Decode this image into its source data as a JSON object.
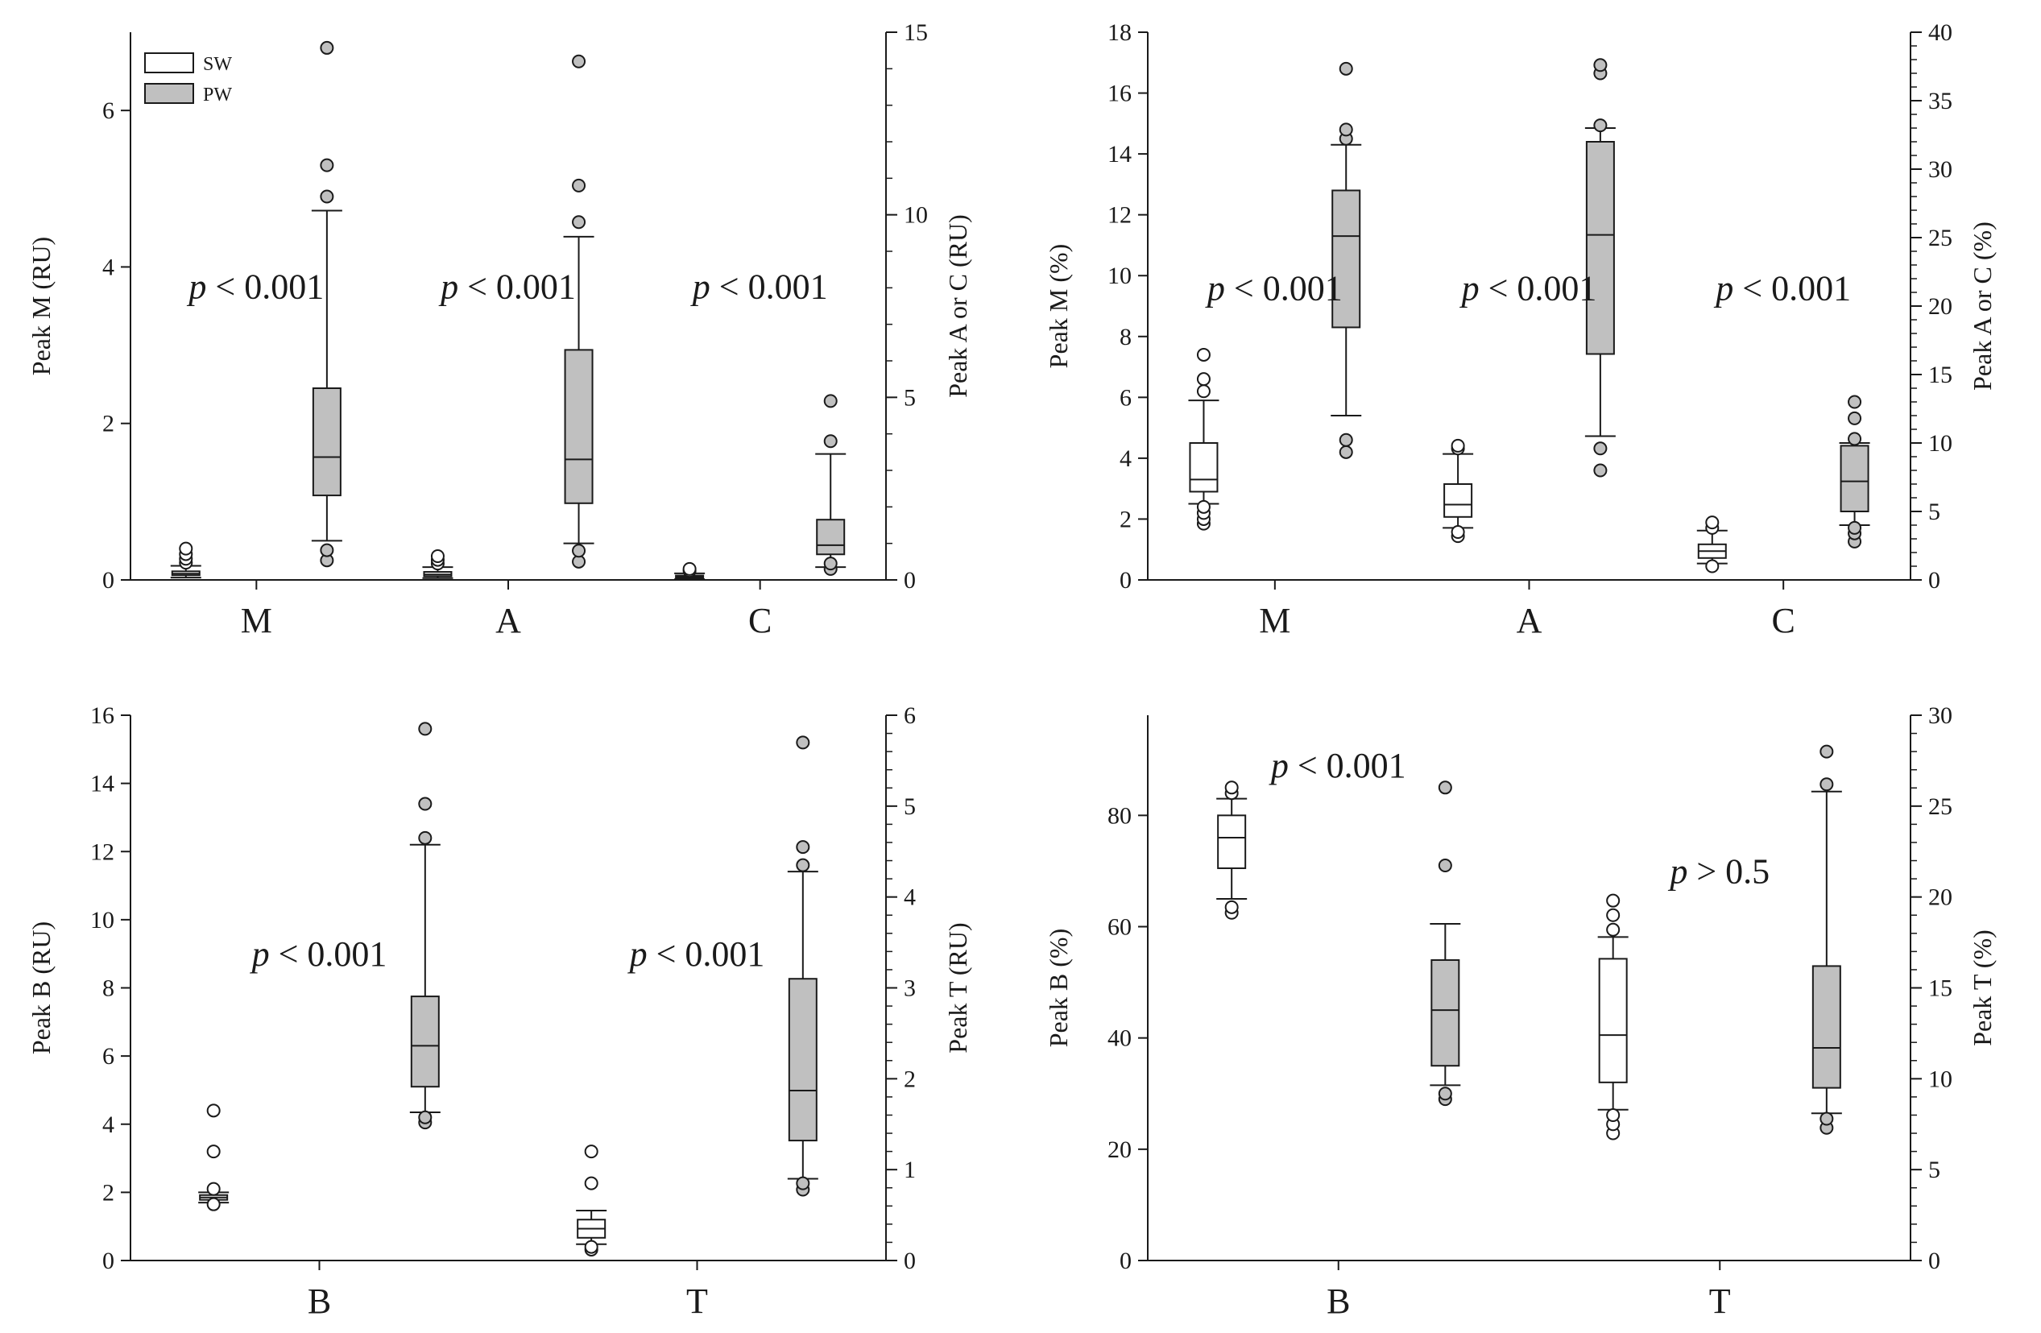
{
  "colors": {
    "sw_fill": "#ffffff",
    "pw_fill": "#c0c0c0",
    "stroke": "#1a1a1a"
  },
  "legend": [
    {
      "label": "SW",
      "fill": "#ffffff"
    },
    {
      "label": "PW",
      "fill": "#c0c0c0"
    }
  ],
  "chart_data": [
    {
      "type": "box",
      "panel": "top-left",
      "ylabel_left": "Peak M (RU)",
      "ylabel_right": "Peak A or C (RU)",
      "ylim_left": [
        0,
        7
      ],
      "ylim_right": [
        0,
        15
      ],
      "yticks_left": [
        0,
        2,
        4,
        6
      ],
      "yticks_right": [
        0,
        5,
        10,
        15
      ],
      "minor_right": 1,
      "categories": [
        "M",
        "A",
        "C"
      ],
      "category_axes": [
        "left",
        "right",
        "right"
      ],
      "pvalues": [
        {
          "italic": "p",
          "text": " < 0.001",
          "x": 0.5,
          "y": 3.75
        },
        {
          "italic": "p",
          "text": " < 0.001",
          "x": 1.5,
          "y": 3.75
        },
        {
          "italic": "p",
          "text": " < 0.001",
          "x": 2.5,
          "y": 3.75
        }
      ],
      "boxes": [
        {
          "cat": 0,
          "group": "SW",
          "axis": "left",
          "wlo": 0.03,
          "q1": 0.06,
          "med": 0.08,
          "q3": 0.11,
          "whi": 0.18,
          "outliers": [
            0.22,
            0.27,
            0.33,
            0.4
          ]
        },
        {
          "cat": 0,
          "group": "PW",
          "axis": "left",
          "wlo": 0.5,
          "q1": 1.08,
          "med": 1.57,
          "q3": 2.45,
          "whi": 4.72,
          "outliers": [
            0.25,
            0.38,
            4.9,
            5.3,
            6.8
          ]
        },
        {
          "cat": 1,
          "group": "SW",
          "axis": "right",
          "wlo": 0.05,
          "q1": 0.1,
          "med": 0.15,
          "q3": 0.22,
          "whi": 0.35,
          "outliers": [
            0.45,
            0.55,
            0.65
          ]
        },
        {
          "cat": 1,
          "group": "PW",
          "axis": "right",
          "wlo": 1.0,
          "q1": 2.1,
          "med": 3.3,
          "q3": 6.3,
          "whi": 9.4,
          "outliers": [
            0.5,
            0.8,
            9.8,
            10.8,
            14.2
          ]
        },
        {
          "cat": 2,
          "group": "SW",
          "axis": "right",
          "wlo": 0.02,
          "q1": 0.05,
          "med": 0.08,
          "q3": 0.12,
          "whi": 0.18,
          "outliers": [
            0.25,
            0.3
          ]
        },
        {
          "cat": 2,
          "group": "PW",
          "axis": "right",
          "wlo": 0.35,
          "q1": 0.7,
          "med": 0.95,
          "q3": 1.65,
          "whi": 3.45,
          "outliers": [
            0.3,
            0.45,
            3.8,
            4.9
          ]
        }
      ]
    },
    {
      "type": "box",
      "panel": "top-right",
      "ylabel_left": "Peak M (%)",
      "ylabel_right": "Peak A or C (%)",
      "ylim_left": [
        0,
        18
      ],
      "ylim_right": [
        0,
        40
      ],
      "yticks_left": [
        0,
        2,
        4,
        6,
        8,
        10,
        12,
        14,
        16,
        18
      ],
      "yticks_right": [
        0,
        5,
        10,
        15,
        20,
        25,
        30,
        35,
        40
      ],
      "minor_right": 1,
      "categories": [
        "M",
        "A",
        "C"
      ],
      "category_axes": [
        "left",
        "right",
        "right"
      ],
      "pvalues": [
        {
          "italic": "p",
          "text": " < 0.001",
          "x": 0.5,
          "y": 9.6
        },
        {
          "italic": "p",
          "text": " < 0.001",
          "x": 1.5,
          "y": 9.6
        },
        {
          "italic": "p",
          "text": " < 0.001",
          "x": 2.5,
          "y": 9.6
        }
      ],
      "boxes": [
        {
          "cat": 0,
          "group": "SW",
          "axis": "left",
          "wlo": 2.5,
          "q1": 2.9,
          "med": 3.3,
          "q3": 4.5,
          "whi": 5.9,
          "outliers": [
            1.85,
            2.0,
            2.2,
            2.4,
            6.2,
            6.6,
            7.4
          ]
        },
        {
          "cat": 0,
          "group": "PW",
          "axis": "left",
          "wlo": 5.4,
          "q1": 8.3,
          "med": 11.3,
          "q3": 12.8,
          "whi": 14.3,
          "outliers": [
            4.2,
            4.6,
            14.5,
            14.8,
            16.8
          ]
        },
        {
          "cat": 1,
          "group": "SW",
          "axis": "right",
          "wlo": 3.8,
          "q1": 4.6,
          "med": 5.5,
          "q3": 7.0,
          "whi": 9.2,
          "outliers": [
            3.2,
            3.5,
            9.6,
            9.8
          ]
        },
        {
          "cat": 1,
          "group": "PW",
          "axis": "right",
          "wlo": 10.5,
          "q1": 16.5,
          "med": 25.2,
          "q3": 32.0,
          "whi": 33.0,
          "outliers": [
            8.0,
            9.6,
            33.2,
            37.0,
            37.6
          ]
        },
        {
          "cat": 2,
          "group": "SW",
          "axis": "right",
          "wlo": 1.2,
          "q1": 1.6,
          "med": 2.1,
          "q3": 2.6,
          "whi": 3.6,
          "outliers": [
            1.0,
            3.8,
            4.2
          ]
        },
        {
          "cat": 2,
          "group": "PW",
          "axis": "right",
          "wlo": 4.0,
          "q1": 5.0,
          "med": 7.2,
          "q3": 9.8,
          "whi": 10.0,
          "outliers": [
            2.8,
            3.4,
            3.8,
            10.3,
            11.8,
            13.0
          ]
        }
      ]
    },
    {
      "type": "box",
      "panel": "bottom-left",
      "ylabel_left": "Peak B (RU)",
      "ylabel_right": "Peak T (RU)",
      "ylim_left": [
        0,
        16
      ],
      "ylim_right": [
        0,
        6
      ],
      "yticks_left": [
        0,
        2,
        4,
        6,
        8,
        10,
        12,
        14,
        16
      ],
      "yticks_right": [
        0,
        1,
        2,
        3,
        4,
        5,
        6
      ],
      "minor_right": 0.2,
      "categories": [
        "B",
        "T"
      ],
      "category_axes": [
        "left",
        "right"
      ],
      "pvalues": [
        {
          "italic": "p",
          "text": " < 0.001",
          "x": 0.5,
          "y": 9.0
        },
        {
          "italic": "p",
          "text": " < 0.001",
          "x": 1.5,
          "y": 9.0
        }
      ],
      "boxes": [
        {
          "cat": 0,
          "group": "SW",
          "axis": "left",
          "wlo": 1.7,
          "q1": 1.78,
          "med": 1.85,
          "q3": 1.92,
          "whi": 2.0,
          "outliers": [
            1.65,
            2.1,
            3.2,
            4.4
          ]
        },
        {
          "cat": 0,
          "group": "PW",
          "axis": "left",
          "wlo": 4.35,
          "q1": 5.1,
          "med": 6.3,
          "q3": 7.75,
          "whi": 12.2,
          "outliers": [
            4.05,
            4.2,
            12.4,
            13.4,
            15.6
          ]
        },
        {
          "cat": 1,
          "group": "SW",
          "axis": "right",
          "wlo": 0.18,
          "q1": 0.25,
          "med": 0.35,
          "q3": 0.45,
          "whi": 0.55,
          "outliers": [
            0.12,
            0.15,
            0.85,
            1.2
          ]
        },
        {
          "cat": 1,
          "group": "PW",
          "axis": "right",
          "wlo": 0.9,
          "q1": 1.32,
          "med": 1.87,
          "q3": 3.1,
          "whi": 4.28,
          "outliers": [
            0.78,
            0.85,
            4.35,
            4.55,
            5.7
          ]
        }
      ]
    },
    {
      "type": "box",
      "panel": "bottom-right",
      "ylabel_left": "Peak B (%)",
      "ylabel_right": "Peak T (%)",
      "ylim_left": [
        0,
        98
      ],
      "ylim_right": [
        0,
        30
      ],
      "yticks_left": [
        0,
        20,
        40,
        60,
        80
      ],
      "yticks_right": [
        0,
        5,
        10,
        15,
        20,
        25,
        30
      ],
      "minor_right": 1,
      "categories": [
        "B",
        "T"
      ],
      "category_axes": [
        "left",
        "right"
      ],
      "pvalues": [
        {
          "italic": "p",
          "text": " < 0.001",
          "x": 0.5,
          "y": 89
        },
        {
          "italic": "p",
          "text": " > 0.5",
          "x": 1.5,
          "y": 70
        }
      ],
      "boxes": [
        {
          "cat": 0,
          "group": "SW",
          "axis": "left",
          "wlo": 65,
          "q1": 70.5,
          "med": 76,
          "q3": 80,
          "whi": 83,
          "outliers": [
            62.5,
            63.5,
            84,
            85
          ]
        },
        {
          "cat": 0,
          "group": "PW",
          "axis": "left",
          "wlo": 31.5,
          "q1": 35,
          "med": 45,
          "q3": 54,
          "whi": 60.5,
          "outliers": [
            29,
            30,
            71,
            85
          ]
        },
        {
          "cat": 1,
          "group": "SW",
          "axis": "right",
          "wlo": 8.3,
          "q1": 9.8,
          "med": 12.4,
          "q3": 16.6,
          "whi": 17.8,
          "outliers": [
            7.0,
            7.5,
            8.0,
            18.2,
            19.0,
            19.8
          ]
        },
        {
          "cat": 1,
          "group": "PW",
          "axis": "right",
          "wlo": 8.1,
          "q1": 9.5,
          "med": 11.7,
          "q3": 16.2,
          "whi": 25.8,
          "outliers": [
            7.3,
            7.8,
            26.2,
            28.0
          ]
        }
      ]
    }
  ]
}
